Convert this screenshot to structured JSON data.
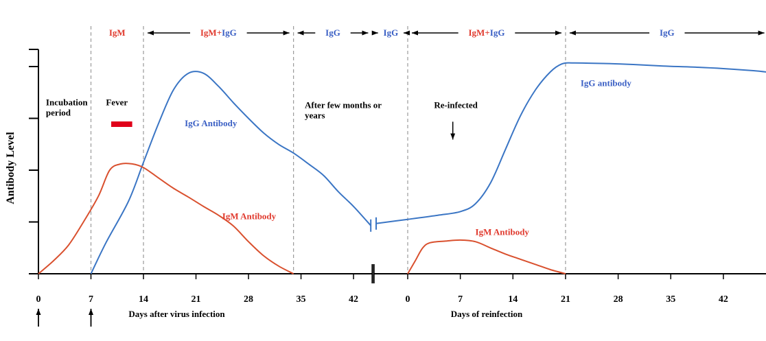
{
  "chart_data": {
    "type": "line",
    "ylabel": "Antibody Level",
    "colors": {
      "igm": "#e03a2e",
      "igg": "#3a5fc4",
      "curve_igm": "#d9502e",
      "curve_igg": "#3a75c4",
      "fever_bar": "#e0001a",
      "guide": "#9a9a9a"
    },
    "panels": [
      {
        "xlabel": "Days after virus infection",
        "ticks": [
          0,
          7,
          14,
          21,
          28,
          35,
          42
        ],
        "xrange": [
          0,
          44.5
        ],
        "series": [
          {
            "name": "IgG Antibody",
            "color": "igg",
            "points": [
              [
                7,
                0
              ],
              [
                9,
                0.6
              ],
              [
                12,
                1.4
              ],
              [
                14,
                2.15
              ],
              [
                16,
                2.9
              ],
              [
                18,
                3.55
              ],
              [
                20,
                3.87
              ],
              [
                22,
                3.87
              ],
              [
                24,
                3.62
              ],
              [
                26,
                3.3
              ],
              [
                28,
                3.0
              ],
              [
                30,
                2.72
              ],
              [
                32,
                2.5
              ],
              [
                34,
                2.33
              ],
              [
                36,
                2.12
              ],
              [
                38,
                1.9
              ],
              [
                40,
                1.58
              ],
              [
                42,
                1.3
              ],
              [
                44.3,
                0.93
              ]
            ]
          },
          {
            "name": "IgM Antibody",
            "color": "igm",
            "points": [
              [
                0,
                0
              ],
              [
                2,
                0.25
              ],
              [
                4,
                0.55
              ],
              [
                6,
                1.0
              ],
              [
                8,
                1.5
              ],
              [
                9.5,
                2.0
              ],
              [
                11,
                2.12
              ],
              [
                12.5,
                2.12
              ],
              [
                14,
                2.05
              ],
              [
                16,
                1.85
              ],
              [
                18,
                1.65
              ],
              [
                20,
                1.48
              ],
              [
                22,
                1.3
              ],
              [
                24,
                1.13
              ],
              [
                26,
                0.92
              ],
              [
                28,
                0.62
              ],
              [
                30,
                0.35
              ],
              [
                32,
                0.15
              ],
              [
                34,
                0.0
              ]
            ]
          }
        ],
        "labels": [
          {
            "key": "incubation",
            "line1": "Incubation",
            "line2": "period",
            "x": 1,
            "y": 3.25
          },
          {
            "key": "fever",
            "text": "Fever",
            "x": 9,
            "y": 3.25
          },
          {
            "key": "igg_antibody",
            "text": "IgG Antibody",
            "x": 19.5,
            "y": 2.85,
            "color": "igg"
          },
          {
            "key": "igm_antibody",
            "text": "IgM Antibody",
            "x": 24.5,
            "y": 1.05,
            "color": "igm"
          },
          {
            "key": "after_few",
            "line1": "After few months or",
            "line2": "years",
            "x": 35.5,
            "y": 3.2
          }
        ],
        "fever_bar": [
          9.7,
          12.5
        ],
        "phases": [
          {
            "from": 7,
            "to": 14,
            "parts": [
              {
                "text": "IgM",
                "color": "igm"
              }
            ]
          },
          {
            "from": 14,
            "to": 34,
            "parts": [
              {
                "text": "IgM",
                "color": "igm"
              },
              {
                "text": "+",
                "color": "igm"
              },
              {
                "text": "IgG",
                "color": "igg"
              }
            ]
          },
          {
            "from": 34,
            "to": 44.5,
            "parts": [
              {
                "text": "IgG",
                "color": "igg"
              }
            ]
          }
        ],
        "guides": [
          7,
          14,
          34
        ]
      },
      {
        "xlabel": "Days of reinfection",
        "ticks": [
          0,
          7,
          14,
          21,
          28,
          35,
          42
        ],
        "xrange": [
          -4.5,
          48
        ],
        "series": [
          {
            "name": "IgG antibody",
            "color": "igg",
            "points": [
              [
                -4.2,
                0.97
              ],
              [
                0,
                1.05
              ],
              [
                4,
                1.13
              ],
              [
                7,
                1.2
              ],
              [
                9,
                1.35
              ],
              [
                11,
                1.75
              ],
              [
                13,
                2.4
              ],
              [
                15,
                3.05
              ],
              [
                17,
                3.55
              ],
              [
                19,
                3.9
              ],
              [
                20.5,
                4.05
              ],
              [
                22,
                4.07
              ],
              [
                26,
                4.06
              ],
              [
                30,
                4.04
              ],
              [
                34,
                4.01
              ],
              [
                38,
                3.99
              ],
              [
                42,
                3.96
              ],
              [
                46,
                3.92
              ],
              [
                48,
                3.89
              ]
            ]
          },
          {
            "name": "IgM Antibody",
            "color": "igm",
            "points": [
              [
                0,
                0
              ],
              [
                1,
                0.25
              ],
              [
                2,
                0.5
              ],
              [
                3,
                0.6
              ],
              [
                5,
                0.63
              ],
              [
                7,
                0.65
              ],
              [
                9,
                0.62
              ],
              [
                11,
                0.5
              ],
              [
                13,
                0.38
              ],
              [
                15,
                0.28
              ],
              [
                17,
                0.18
              ],
              [
                19,
                0.08
              ],
              [
                21,
                0.0
              ]
            ]
          }
        ],
        "labels": [
          {
            "key": "reinfected",
            "text": "Re-infected",
            "x": 3.5,
            "y": 3.2
          },
          {
            "key": "igg_antibody",
            "text": "IgG antibody",
            "x": 23,
            "y": 3.62,
            "color": "igg"
          },
          {
            "key": "igm_antibody",
            "text": "IgM Antibody",
            "x": 9,
            "y": 0.75,
            "color": "igm"
          }
        ],
        "phases": [
          {
            "from": -4.5,
            "to": 0,
            "parts": [
              {
                "text": "IgG",
                "color": "igg"
              }
            ]
          },
          {
            "from": 0,
            "to": 21,
            "parts": [
              {
                "text": "IgM",
                "color": "igm"
              },
              {
                "text": "+",
                "color": "igm"
              },
              {
                "text": "IgG",
                "color": "igg"
              }
            ]
          },
          {
            "from": 21,
            "to": 48,
            "parts": [
              {
                "text": "IgG",
                "color": "igg"
              }
            ]
          }
        ],
        "guides": [
          0,
          21
        ]
      }
    ],
    "markers": [
      0,
      7
    ]
  }
}
